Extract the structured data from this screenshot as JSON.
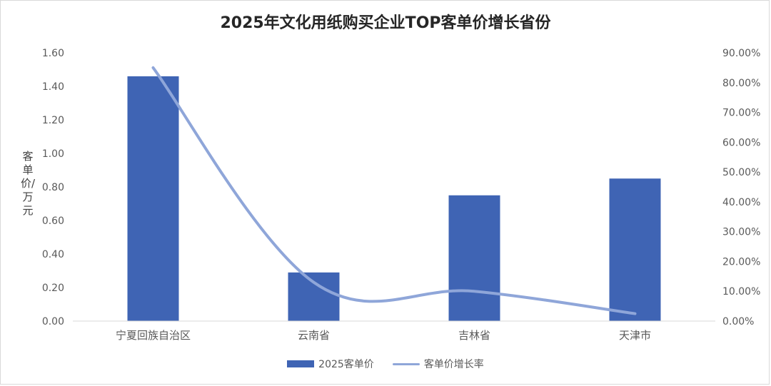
{
  "chart_data": {
    "type": "bar",
    "title": "2025年文化用纸购买企业TOP客单价增长省份",
    "ylabel": "客单价/万元",
    "categories": [
      "宁夏回族自治区",
      "云南省",
      "吉林省",
      "天津市"
    ],
    "series": [
      {
        "name": "2025客单价",
        "type": "bar",
        "axis": "left",
        "values": [
          1.46,
          0.29,
          0.75,
          0.85
        ],
        "color": "#3f64b4"
      },
      {
        "name": "客单价增长率",
        "type": "line",
        "axis": "right",
        "values": [
          0.85,
          0.13,
          0.1,
          0.025
        ],
        "color": "#8fa6d9"
      }
    ],
    "ylim": [
      0,
      1.6
    ],
    "y2lim": [
      0,
      0.9
    ],
    "yticks": [
      "0.00",
      "0.20",
      "0.40",
      "0.60",
      "0.80",
      "1.00",
      "1.20",
      "1.40",
      "1.60"
    ],
    "y2ticks": [
      "0.00%",
      "10.00%",
      "20.00%",
      "30.00%",
      "40.00%",
      "50.00%",
      "60.00%",
      "70.00%",
      "80.00%",
      "90.00%"
    ],
    "legend_position": "bottom",
    "grid": false
  }
}
